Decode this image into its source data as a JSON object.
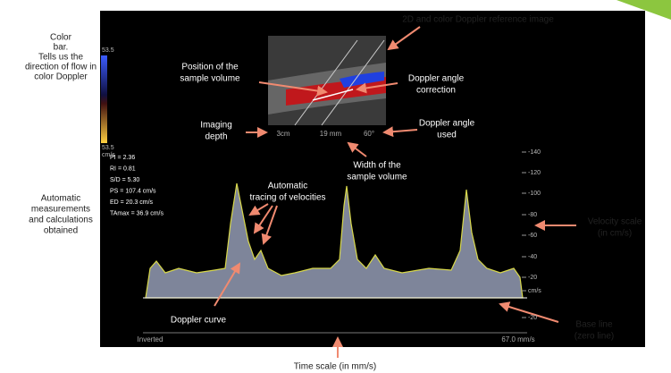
{
  "reference_image": "2D and color Doppler reference image",
  "color_bar": {
    "lines": [
      "Color",
      "bar.",
      "Tells us the",
      "direction of flow in",
      "color Doppler"
    ],
    "scale_top": "53.5",
    "scale_bottom": "53.5",
    "unit": "cm/s"
  },
  "sample_volume_position": [
    "Position of the",
    "sample volume"
  ],
  "angle_correction": [
    "Doppler angle",
    "correction"
  ],
  "imaging_depth": [
    "Imaging",
    "depth"
  ],
  "angle_used": [
    "Doppler angle",
    "used"
  ],
  "readouts": [
    "3cm",
    "19 mm",
    "60°"
  ],
  "sample_volume_width": [
    "Width of the",
    "sample volume"
  ],
  "auto_tracing": [
    "Automatic",
    "tracing of velocities"
  ],
  "measurements_note": [
    "Automatic",
    "measurements",
    "and calculations",
    "obtained"
  ],
  "measurements": [
    "PI = 2.36",
    "RI = 0.81",
    "S/D = 5.30",
    "PS = 107.4 cm/s",
    "ED = 20.3 cm/s",
    "TAmax = 36.9 cm/s"
  ],
  "velocity_scale_labels": [
    "-140",
    "-120",
    "-100",
    "-80",
    "-60",
    "-40",
    "-20",
    "cm/s",
    "-20"
  ],
  "velocity_scale": [
    "Velocity scale",
    "(in cm/s)"
  ],
  "doppler_curve": "Doppler curve",
  "base_line": [
    "Base line",
    "(zero line)"
  ],
  "footer": {
    "left": "Inverted",
    "right": "67.0 mm/s"
  },
  "time_scale": "Time scale (in mm/s)"
}
